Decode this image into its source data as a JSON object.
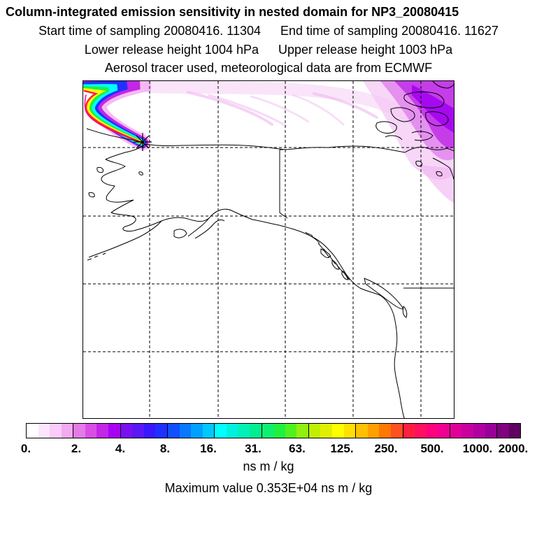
{
  "title": "Column-integrated emission sensitivity in nested domain for NP3_20080415",
  "start_label": "Start time of sampling 20080416. 11304",
  "end_label": "End time of sampling 20080416. 11627",
  "lower_label": "Lower release height 1004 hPa",
  "upper_label": "Upper release height 1003 hPa",
  "tracer_label": "Aerosol tracer used, meteorological data are from ECMWF",
  "colorbar": {
    "ticks": [
      "0.",
      "2.",
      "4.",
      "8.",
      "16.",
      "31.",
      "63.",
      "125.",
      "250.",
      "500.",
      "1000.",
      "2000."
    ],
    "colors": [
      "#ffffff",
      "#fde6fd",
      "#f9ccf9",
      "#f2aaf2",
      "#e67ae6",
      "#d84fe6",
      "#c326e6",
      "#a800f5",
      "#7a10f0",
      "#5a18f5",
      "#3a18ff",
      "#2030ff",
      "#1050ff",
      "#0878ff",
      "#00a0ff",
      "#00c8ff",
      "#00ffff",
      "#00f0e0",
      "#00f0b8",
      "#00f090",
      "#10f070",
      "#20f040",
      "#50f020",
      "#90f010",
      "#c0f000",
      "#e0f000",
      "#ffff00",
      "#ffe000",
      "#ffc000",
      "#ffa000",
      "#ff7800",
      "#ff5020",
      "#ff2040",
      "#ff1060",
      "#ff0080",
      "#f00090",
      "#e00098",
      "#c800a0",
      "#b000a0",
      "#980098",
      "#800080",
      "#600060"
    ],
    "unit": "ns m / kg",
    "max_label": "Maximum value  0.353E+04 ns m / kg"
  },
  "map": {
    "release_marker": "release-point-marker"
  }
}
